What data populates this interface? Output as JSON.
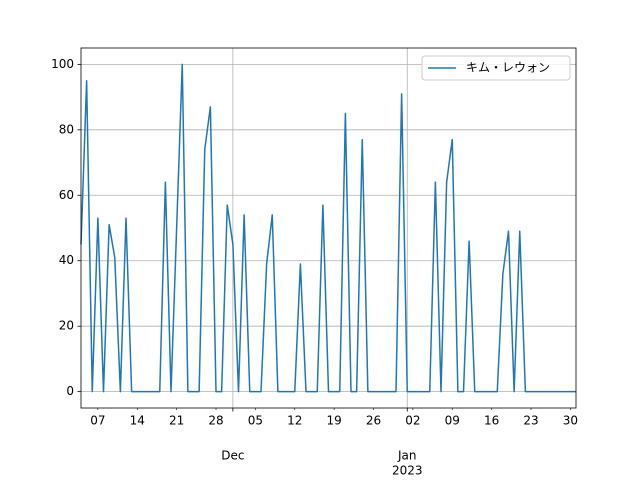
{
  "chart_data": {
    "type": "line",
    "x": [
      "2022-11-04",
      "2022-11-05",
      "2022-11-06",
      "2022-11-07",
      "2022-11-08",
      "2022-11-09",
      "2022-11-10",
      "2022-11-11",
      "2022-11-12",
      "2022-11-13",
      "2022-11-14",
      "2022-11-15",
      "2022-11-16",
      "2022-11-17",
      "2022-11-18",
      "2022-11-19",
      "2022-11-20",
      "2022-11-21",
      "2022-11-22",
      "2022-11-23",
      "2022-11-24",
      "2022-11-25",
      "2022-11-26",
      "2022-11-27",
      "2022-11-28",
      "2022-11-29",
      "2022-11-30",
      "2022-12-01",
      "2022-12-02",
      "2022-12-03",
      "2022-12-04",
      "2022-12-05",
      "2022-12-06",
      "2022-12-07",
      "2022-12-08",
      "2022-12-09",
      "2022-12-10",
      "2022-12-11",
      "2022-12-12",
      "2022-12-13",
      "2022-12-14",
      "2022-12-15",
      "2022-12-16",
      "2022-12-17",
      "2022-12-18",
      "2022-12-19",
      "2022-12-20",
      "2022-12-21",
      "2022-12-22",
      "2022-12-23",
      "2022-12-24",
      "2022-12-25",
      "2022-12-26",
      "2022-12-27",
      "2022-12-28",
      "2022-12-29",
      "2022-12-30",
      "2022-12-31",
      "2023-01-01",
      "2023-01-02",
      "2023-01-03",
      "2023-01-04",
      "2023-01-05",
      "2023-01-06",
      "2023-01-07",
      "2023-01-08",
      "2023-01-09",
      "2023-01-10",
      "2023-01-11",
      "2023-01-12",
      "2023-01-13",
      "2023-01-14",
      "2023-01-15",
      "2023-01-16",
      "2023-01-17",
      "2023-01-18",
      "2023-01-19",
      "2023-01-20",
      "2023-01-21",
      "2023-01-22",
      "2023-01-23",
      "2023-01-24",
      "2023-01-25",
      "2023-01-26",
      "2023-01-27",
      "2023-01-28",
      "2023-01-29",
      "2023-01-30",
      "2023-01-31"
    ],
    "series": [
      {
        "name": "キム・レウォン",
        "color": "#1f77b4",
        "values": [
          45,
          95,
          0,
          53,
          0,
          51,
          41,
          0,
          53,
          0,
          0,
          0,
          0,
          0,
          0,
          64,
          0,
          50,
          100,
          0,
          0,
          0,
          74,
          87,
          0,
          0,
          57,
          45,
          0,
          54,
          0,
          0,
          0,
          39,
          54,
          0,
          0,
          0,
          0,
          39,
          0,
          0,
          0,
          57,
          0,
          0,
          0,
          85,
          0,
          0,
          77,
          0,
          0,
          0,
          0,
          0,
          0,
          91,
          0,
          0,
          0,
          0,
          0,
          64,
          0,
          64,
          77,
          0,
          0,
          46,
          0,
          0,
          0,
          0,
          0,
          36,
          49,
          0,
          49,
          0,
          0,
          0,
          0,
          0,
          0,
          0,
          0,
          0,
          0
        ]
      }
    ],
    "xlim": [
      "2022-11-04",
      "2023-01-31"
    ],
    "xticks": [
      {
        "value": "2022-11-07",
        "label": "07"
      },
      {
        "value": "2022-11-14",
        "label": "14"
      },
      {
        "value": "2022-11-21",
        "label": "21"
      },
      {
        "value": "2022-11-28",
        "label": "28"
      },
      {
        "value": "2022-12-05",
        "label": "05"
      },
      {
        "value": "2022-12-12",
        "label": "12"
      },
      {
        "value": "2022-12-19",
        "label": "19"
      },
      {
        "value": "2022-12-26",
        "label": "26"
      },
      {
        "value": "2023-01-02",
        "label": "02"
      },
      {
        "value": "2023-01-09",
        "label": "09"
      },
      {
        "value": "2023-01-16",
        "label": "16"
      },
      {
        "value": "2023-01-23",
        "label": "23"
      },
      {
        "value": "2023-01-30",
        "label": "30"
      }
    ],
    "xticks_major": [
      {
        "value": "2022-12-01",
        "label": "Dec"
      },
      {
        "value": "2023-01-01",
        "label": "Jan",
        "year": "2023"
      }
    ],
    "ylim": [
      -5,
      105
    ],
    "yticks": [
      0,
      20,
      40,
      60,
      80,
      100
    ],
    "grid": true,
    "legend": "upper right"
  }
}
